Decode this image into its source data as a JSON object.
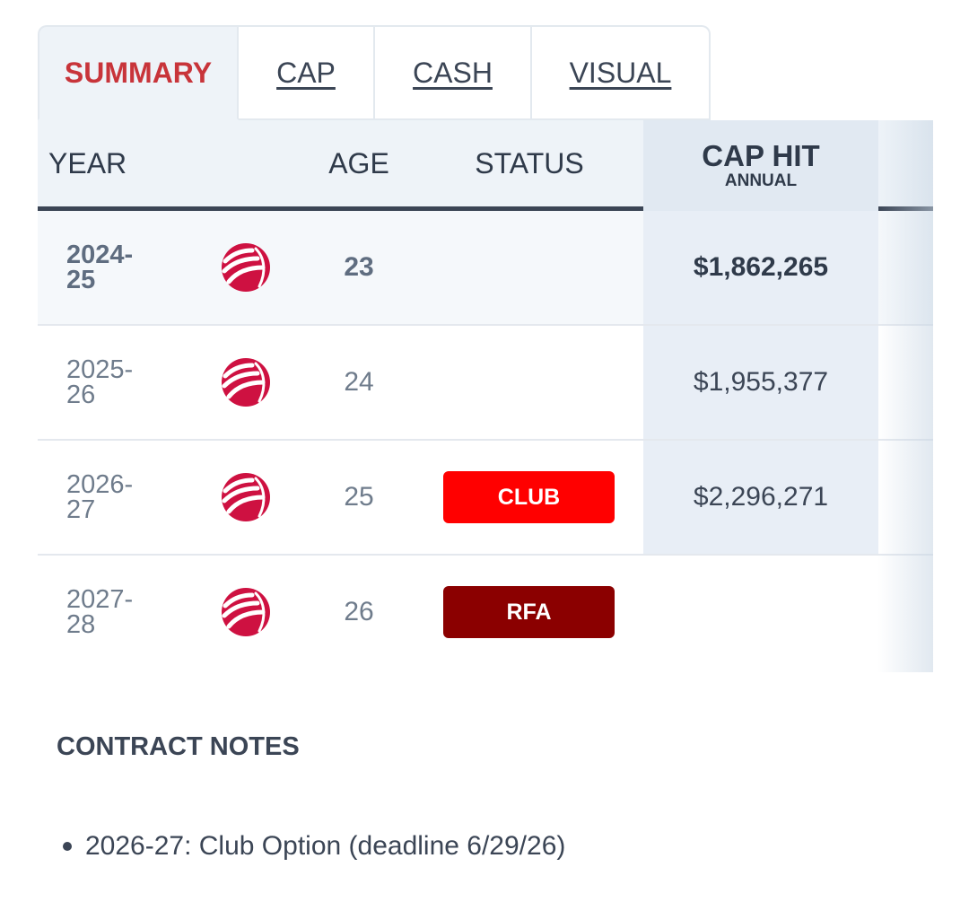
{
  "tabs": [
    {
      "label": "SUMMARY",
      "active": true
    },
    {
      "label": "CAP",
      "active": false
    },
    {
      "label": "CASH",
      "active": false
    },
    {
      "label": "VISUAL",
      "active": false
    }
  ],
  "table": {
    "headers": {
      "year": "YEAR",
      "age": "AGE",
      "status": "STATUS",
      "cap_hit": "CAP HIT",
      "cap_hit_sub": "ANNUAL"
    },
    "rows": [
      {
        "year": "2024-\n25",
        "year_line1": "2024-",
        "year_line2": "25",
        "team_icon": "raptors-logo-icon",
        "age": "23",
        "status": "",
        "cap_hit": "$1,862,265"
      },
      {
        "year_line1": "2025-",
        "year_line2": "26",
        "team_icon": "raptors-logo-icon",
        "age": "24",
        "status": "",
        "cap_hit": "$1,955,377"
      },
      {
        "year_line1": "2026-",
        "year_line2": "27",
        "team_icon": "raptors-logo-icon",
        "age": "25",
        "status": "CLUB",
        "cap_hit": "$2,296,271"
      },
      {
        "year_line1": "2027-",
        "year_line2": "28",
        "team_icon": "raptors-logo-icon",
        "age": "26",
        "status": "RFA",
        "cap_hit": ""
      }
    ]
  },
  "colors": {
    "club": "#ff0000",
    "rfa": "#8b0000",
    "team_red": "#ce1141",
    "active_tab": "#c8343a"
  },
  "notes": {
    "title": "CONTRACT NOTES",
    "items": [
      "2026-27: Club Option (deadline 6/29/26)"
    ]
  }
}
